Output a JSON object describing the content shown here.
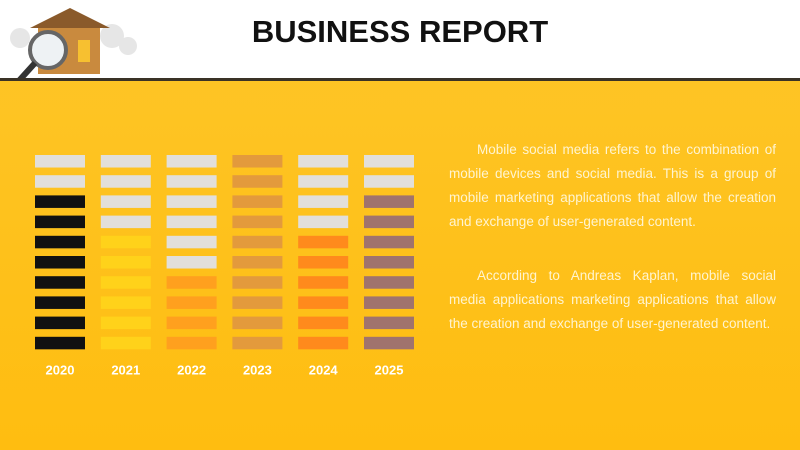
{
  "title": "BUSINESS REPORT",
  "paragraphs": [
    "Mobile social media refers to the combination of mobile devices and social media. This is a group of mobile marketing applications that allow the creation and exchange of user-generated content.",
    "According to Andreas Kaplan, mobile social media applications marketing applications that allow the creation and exchange of user-generated content."
  ],
  "chart_data": {
    "type": "block",
    "categories": [
      "2020",
      "2021",
      "2022",
      "2023",
      "2024",
      "2025"
    ],
    "values": [
      8,
      6,
      4,
      10,
      6,
      8
    ],
    "colors": [
      "#111111",
      "#ffd21a",
      "#ffa01e",
      "#e39a3c",
      "#ff8a1c",
      "#a0736d"
    ],
    "ylim": [
      0,
      10
    ]
  }
}
